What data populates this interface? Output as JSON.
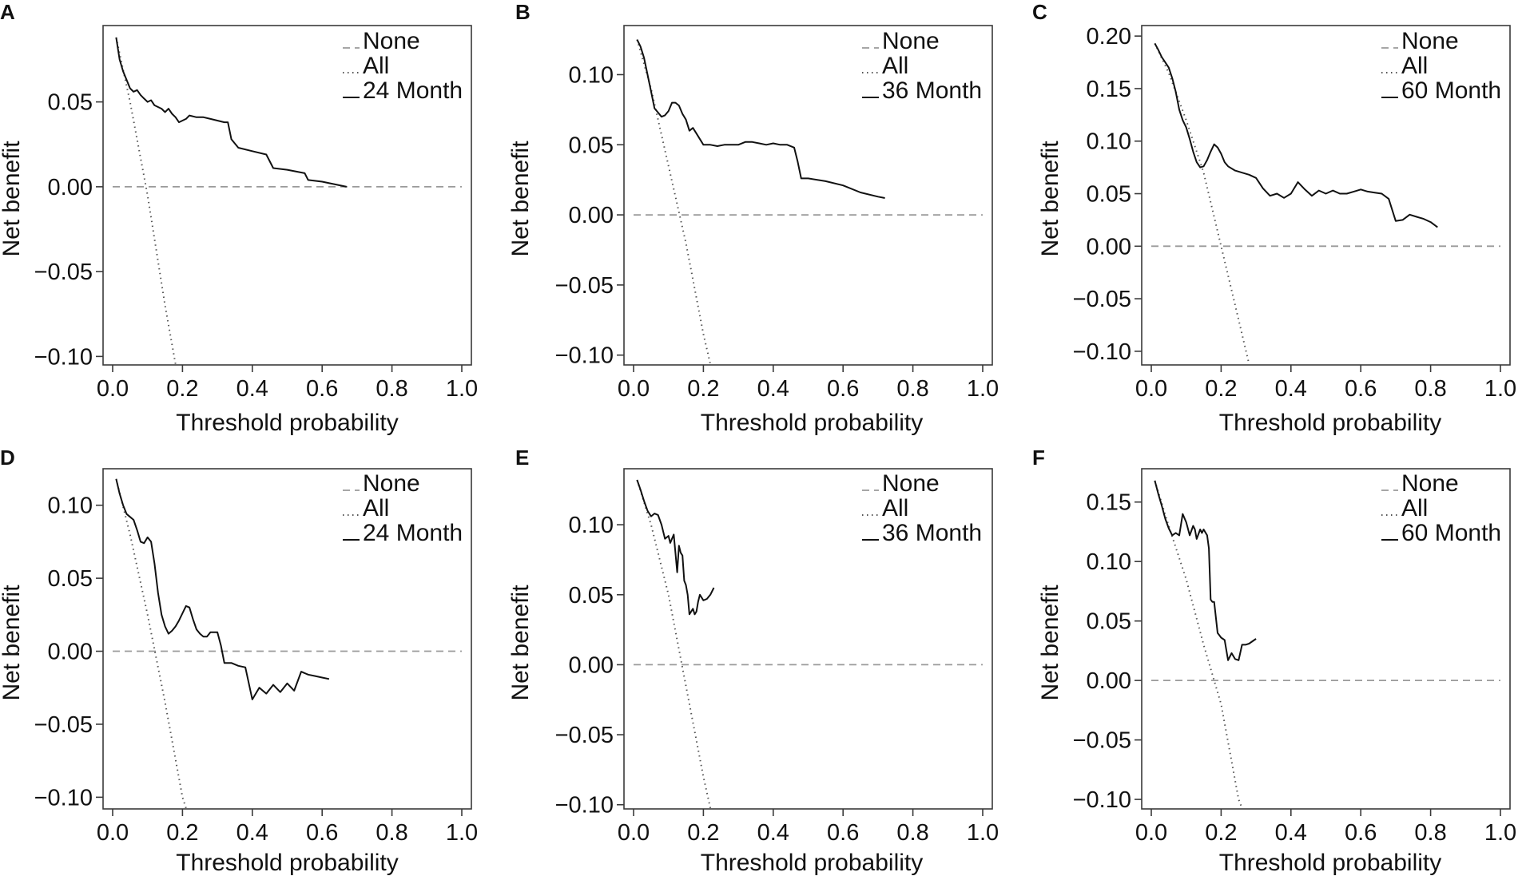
{
  "chart_data": [
    {
      "panel": "A",
      "type": "line",
      "xlabel": "Threshold probability",
      "ylabel": "Net benefit",
      "xlim": [
        0,
        1
      ],
      "ylim": [
        -0.105,
        0.095
      ],
      "xticks": [
        0.0,
        0.2,
        0.4,
        0.6,
        0.8,
        1.0
      ],
      "xtick_labels": [
        "0.0",
        "0.2",
        "0.4",
        "0.6",
        "0.8",
        "1.0"
      ],
      "yticks": [
        0.05,
        0.0,
        -0.05,
        -0.1
      ],
      "ytick_labels": [
        "0.05",
        "0.00",
        "−0.05",
        "−0.10"
      ],
      "legend": [
        "None",
        "All",
        "24 Month"
      ],
      "series": [
        {
          "name": "None",
          "x": [
            0,
            1
          ],
          "y": [
            0,
            0
          ]
        },
        {
          "name": "All",
          "x": [
            0.01,
            0.05,
            0.1,
            0.15,
            0.18
          ],
          "y": [
            0.088,
            0.05,
            -0.005,
            -0.07,
            -0.108
          ]
        },
        {
          "name": "24 Month",
          "x": [
            0.01,
            0.02,
            0.03,
            0.05,
            0.06,
            0.07,
            0.08,
            0.09,
            0.1,
            0.11,
            0.12,
            0.13,
            0.14,
            0.15,
            0.16,
            0.17,
            0.18,
            0.19,
            0.2,
            0.21,
            0.22,
            0.24,
            0.26,
            0.28,
            0.3,
            0.32,
            0.33,
            0.34,
            0.36,
            0.4,
            0.44,
            0.46,
            0.5,
            0.55,
            0.56,
            0.6,
            0.67
          ],
          "y": [
            0.088,
            0.075,
            0.068,
            0.058,
            0.056,
            0.057,
            0.054,
            0.052,
            0.05,
            0.051,
            0.048,
            0.047,
            0.046,
            0.044,
            0.046,
            0.043,
            0.041,
            0.038,
            0.039,
            0.04,
            0.042,
            0.041,
            0.041,
            0.04,
            0.039,
            0.038,
            0.038,
            0.028,
            0.023,
            0.021,
            0.019,
            0.011,
            0.01,
            0.008,
            0.004,
            0.003,
            0.0
          ]
        }
      ]
    },
    {
      "panel": "B",
      "type": "line",
      "xlabel": "Threshold probability",
      "ylabel": "Net benefit",
      "xlim": [
        0,
        1
      ],
      "ylim": [
        -0.107,
        0.135
      ],
      "xticks": [
        0.0,
        0.2,
        0.4,
        0.6,
        0.8,
        1.0
      ],
      "xtick_labels": [
        "0.0",
        "0.2",
        "0.4",
        "0.6",
        "0.8",
        "1.0"
      ],
      "yticks": [
        0.1,
        0.05,
        0.0,
        -0.05,
        -0.1
      ],
      "ytick_labels": [
        "0.10",
        "0.05",
        "0.00",
        "−0.05",
        "−0.10"
      ],
      "legend": [
        "None",
        "All",
        "36 Month"
      ],
      "series": [
        {
          "name": "None",
          "x": [
            0,
            1
          ],
          "y": [
            0,
            0
          ]
        },
        {
          "name": "All",
          "x": [
            0.01,
            0.05,
            0.1,
            0.15,
            0.2,
            0.22
          ],
          "y": [
            0.125,
            0.09,
            0.035,
            -0.02,
            -0.085,
            -0.11
          ]
        },
        {
          "name": "36 Month",
          "x": [
            0.01,
            0.02,
            0.03,
            0.04,
            0.05,
            0.06,
            0.07,
            0.08,
            0.09,
            0.1,
            0.11,
            0.12,
            0.13,
            0.14,
            0.15,
            0.16,
            0.17,
            0.18,
            0.2,
            0.22,
            0.24,
            0.26,
            0.28,
            0.3,
            0.32,
            0.34,
            0.36,
            0.38,
            0.4,
            0.42,
            0.44,
            0.46,
            0.47,
            0.48,
            0.5,
            0.55,
            0.6,
            0.65,
            0.7,
            0.72
          ],
          "y": [
            0.125,
            0.12,
            0.112,
            0.1,
            0.088,
            0.076,
            0.073,
            0.07,
            0.071,
            0.074,
            0.08,
            0.08,
            0.078,
            0.072,
            0.068,
            0.06,
            0.062,
            0.058,
            0.05,
            0.05,
            0.049,
            0.05,
            0.05,
            0.05,
            0.052,
            0.052,
            0.051,
            0.05,
            0.051,
            0.05,
            0.05,
            0.048,
            0.038,
            0.026,
            0.026,
            0.024,
            0.021,
            0.016,
            0.013,
            0.012
          ]
        }
      ]
    },
    {
      "panel": "C",
      "type": "line",
      "xlabel": "Threshold probability",
      "ylabel": "Net benefit",
      "xlim": [
        0,
        1
      ],
      "ylim": [
        -0.113,
        0.21
      ],
      "xticks": [
        0.0,
        0.2,
        0.4,
        0.6,
        0.8,
        1.0
      ],
      "xtick_labels": [
        "0.0",
        "0.2",
        "0.4",
        "0.6",
        "0.8",
        "1.0"
      ],
      "yticks": [
        0.2,
        0.15,
        0.1,
        0.05,
        0.0,
        -0.05,
        -0.1
      ],
      "ytick_labels": [
        "0.20",
        "0.15",
        "0.10",
        "0.05",
        "0.00",
        "−0.05",
        "−0.10"
      ],
      "legend": [
        "None",
        "All",
        "60 Month"
      ],
      "series": [
        {
          "name": "None",
          "x": [
            0,
            1
          ],
          "y": [
            0,
            0
          ]
        },
        {
          "name": "All",
          "x": [
            0.01,
            0.05,
            0.1,
            0.15,
            0.2,
            0.25,
            0.28
          ],
          "y": [
            0.193,
            0.165,
            0.12,
            0.07,
            0.0,
            -0.07,
            -0.115
          ]
        },
        {
          "name": "60 Month",
          "x": [
            0.01,
            0.02,
            0.03,
            0.04,
            0.05,
            0.06,
            0.07,
            0.08,
            0.09,
            0.1,
            0.11,
            0.12,
            0.13,
            0.14,
            0.15,
            0.16,
            0.17,
            0.18,
            0.19,
            0.2,
            0.21,
            0.22,
            0.24,
            0.26,
            0.28,
            0.3,
            0.32,
            0.34,
            0.36,
            0.38,
            0.4,
            0.42,
            0.44,
            0.46,
            0.48,
            0.5,
            0.52,
            0.54,
            0.56,
            0.58,
            0.6,
            0.62,
            0.64,
            0.66,
            0.68,
            0.7,
            0.72,
            0.74,
            0.76,
            0.78,
            0.8,
            0.82
          ],
          "y": [
            0.193,
            0.187,
            0.18,
            0.175,
            0.17,
            0.16,
            0.147,
            0.13,
            0.12,
            0.113,
            0.102,
            0.09,
            0.08,
            0.075,
            0.076,
            0.082,
            0.09,
            0.097,
            0.094,
            0.088,
            0.08,
            0.076,
            0.072,
            0.07,
            0.068,
            0.065,
            0.055,
            0.048,
            0.05,
            0.046,
            0.05,
            0.061,
            0.054,
            0.048,
            0.053,
            0.05,
            0.053,
            0.05,
            0.05,
            0.052,
            0.054,
            0.052,
            0.051,
            0.05,
            0.045,
            0.024,
            0.025,
            0.03,
            0.028,
            0.026,
            0.023,
            0.018
          ]
        }
      ]
    },
    {
      "panel": "D",
      "type": "line",
      "xlabel": "Threshold probability",
      "ylabel": "Net benefit",
      "xlim": [
        0,
        1
      ],
      "ylim": [
        -0.108,
        0.125
      ],
      "xticks": [
        0.0,
        0.2,
        0.4,
        0.6,
        0.8,
        1.0
      ],
      "xtick_labels": [
        "0.0",
        "0.2",
        "0.4",
        "0.6",
        "0.8",
        "1.0"
      ],
      "yticks": [
        0.1,
        0.05,
        0.0,
        -0.05,
        -0.1
      ],
      "ytick_labels": [
        "0.10",
        "0.05",
        "0.00",
        "−0.05",
        "−0.10"
      ],
      "legend": [
        "None",
        "All",
        "24 Month"
      ],
      "series": [
        {
          "name": "None",
          "x": [
            0,
            1
          ],
          "y": [
            0,
            0
          ]
        },
        {
          "name": "All",
          "x": [
            0.01,
            0.05,
            0.1,
            0.15,
            0.2,
            0.21
          ],
          "y": [
            0.118,
            0.08,
            0.025,
            -0.035,
            -0.1,
            -0.11
          ]
        },
        {
          "name": "24 Month",
          "x": [
            0.01,
            0.02,
            0.03,
            0.04,
            0.05,
            0.06,
            0.07,
            0.08,
            0.09,
            0.1,
            0.11,
            0.12,
            0.13,
            0.14,
            0.15,
            0.16,
            0.17,
            0.18,
            0.19,
            0.2,
            0.21,
            0.22,
            0.23,
            0.24,
            0.25,
            0.26,
            0.27,
            0.28,
            0.3,
            0.31,
            0.32,
            0.34,
            0.36,
            0.38,
            0.4,
            0.42,
            0.44,
            0.46,
            0.48,
            0.5,
            0.52,
            0.54,
            0.56,
            0.58,
            0.6,
            0.62
          ],
          "y": [
            0.118,
            0.108,
            0.1,
            0.094,
            0.092,
            0.09,
            0.083,
            0.075,
            0.074,
            0.078,
            0.075,
            0.06,
            0.04,
            0.025,
            0.017,
            0.012,
            0.014,
            0.017,
            0.021,
            0.026,
            0.031,
            0.03,
            0.022,
            0.015,
            0.012,
            0.01,
            0.01,
            0.013,
            0.013,
            0.004,
            -0.008,
            -0.008,
            -0.01,
            -0.011,
            -0.033,
            -0.025,
            -0.029,
            -0.023,
            -0.028,
            -0.022,
            -0.027,
            -0.014,
            -0.016,
            -0.017,
            -0.018,
            -0.019
          ]
        }
      ]
    },
    {
      "panel": "E",
      "type": "line",
      "xlabel": "Threshold probability",
      "ylabel": "Net benefit",
      "xlim": [
        0,
        1
      ],
      "ylim": [
        -0.103,
        0.14
      ],
      "xticks": [
        0.0,
        0.2,
        0.4,
        0.6,
        0.8,
        1.0
      ],
      "xtick_labels": [
        "0.0",
        "0.2",
        "0.4",
        "0.6",
        "0.8",
        "1.0"
      ],
      "yticks": [
        0.1,
        0.05,
        0.0,
        -0.05,
        -0.1
      ],
      "ytick_labels": [
        "0.10",
        "0.05",
        "0.00",
        "−0.05",
        "−0.10"
      ],
      "legend": [
        "None",
        "All",
        "36 Month"
      ],
      "series": [
        {
          "name": "None",
          "x": [
            0,
            1
          ],
          "y": [
            0,
            0
          ]
        },
        {
          "name": "All",
          "x": [
            0.01,
            0.05,
            0.1,
            0.15,
            0.2,
            0.22
          ],
          "y": [
            0.132,
            0.1,
            0.05,
            -0.015,
            -0.08,
            -0.105
          ]
        },
        {
          "name": "36 Month",
          "x": [
            0.01,
            0.02,
            0.03,
            0.04,
            0.05,
            0.06,
            0.07,
            0.08,
            0.09,
            0.1,
            0.105,
            0.11,
            0.115,
            0.12,
            0.125,
            0.13,
            0.135,
            0.14,
            0.145,
            0.15,
            0.155,
            0.16,
            0.165,
            0.17,
            0.175,
            0.18,
            0.185,
            0.19,
            0.2,
            0.21,
            0.22,
            0.23
          ],
          "y": [
            0.132,
            0.125,
            0.117,
            0.11,
            0.106,
            0.108,
            0.107,
            0.1,
            0.09,
            0.092,
            0.087,
            0.09,
            0.093,
            0.08,
            0.066,
            0.085,
            0.08,
            0.078,
            0.06,
            0.057,
            0.05,
            0.036,
            0.038,
            0.04,
            0.036,
            0.038,
            0.045,
            0.05,
            0.046,
            0.047,
            0.05,
            0.055
          ]
        }
      ]
    },
    {
      "panel": "F",
      "type": "line",
      "xlabel": "Threshold probability",
      "ylabel": "Net benefit",
      "xlim": [
        0,
        1
      ],
      "ylim": [
        -0.108,
        0.178
      ],
      "xticks": [
        0.0,
        0.2,
        0.4,
        0.6,
        0.8,
        1.0
      ],
      "xtick_labels": [
        "0.0",
        "0.2",
        "0.4",
        "0.6",
        "0.8",
        "1.0"
      ],
      "yticks": [
        0.15,
        0.1,
        0.05,
        0.0,
        -0.05,
        -0.1
      ],
      "ytick_labels": [
        "0.15",
        "0.10",
        "0.05",
        "0.00",
        "−0.05",
        "−0.10"
      ],
      "legend": [
        "None",
        "All",
        "60 Month"
      ],
      "series": [
        {
          "name": "None",
          "x": [
            0,
            1
          ],
          "y": [
            0,
            0
          ]
        },
        {
          "name": "All",
          "x": [
            0.01,
            0.05,
            0.1,
            0.15,
            0.2,
            0.25,
            0.26
          ],
          "y": [
            0.168,
            0.13,
            0.085,
            0.03,
            -0.02,
            -0.1,
            -0.11
          ]
        },
        {
          "name": "60 Month",
          "x": [
            0.01,
            0.02,
            0.03,
            0.04,
            0.05,
            0.06,
            0.07,
            0.08,
            0.09,
            0.1,
            0.11,
            0.12,
            0.125,
            0.13,
            0.14,
            0.145,
            0.15,
            0.16,
            0.165,
            0.17,
            0.175,
            0.18,
            0.19,
            0.2,
            0.21,
            0.22,
            0.23,
            0.24,
            0.25,
            0.26,
            0.27,
            0.28,
            0.29,
            0.3
          ],
          "y": [
            0.168,
            0.157,
            0.147,
            0.136,
            0.128,
            0.122,
            0.124,
            0.122,
            0.14,
            0.133,
            0.122,
            0.13,
            0.127,
            0.119,
            0.127,
            0.124,
            0.127,
            0.122,
            0.111,
            0.068,
            0.066,
            0.066,
            0.04,
            0.036,
            0.034,
            0.017,
            0.023,
            0.018,
            0.017,
            0.03,
            0.03,
            0.031,
            0.033,
            0.035
          ]
        }
      ]
    }
  ]
}
